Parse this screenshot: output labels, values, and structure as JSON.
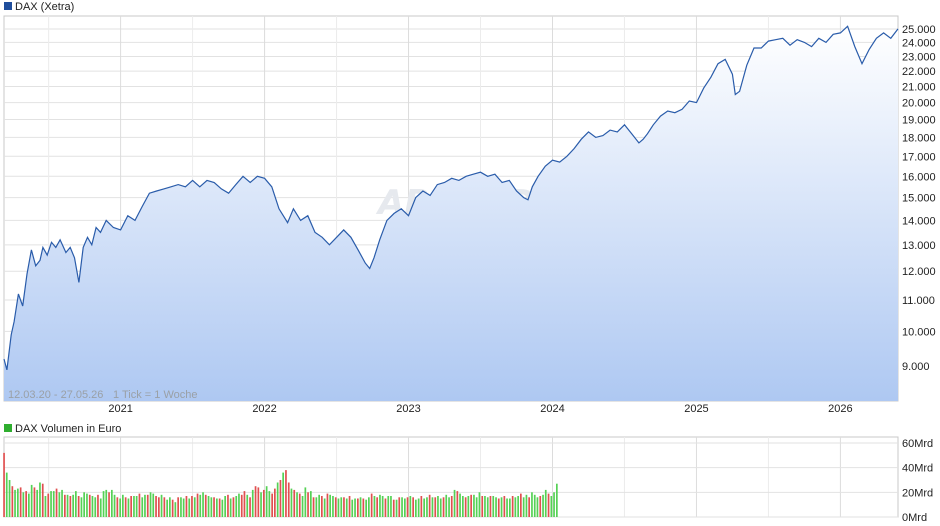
{
  "chart_data": [
    {
      "type": "area",
      "title": "DAX (Xetra)",
      "legend_color": "#1f4e9c",
      "line_color": "#2a5caa",
      "fill_top_color": "#ffffff",
      "fill_bottom_color": "#aec8f2",
      "date_range_note": "12.03.20 - 27.05.26",
      "tick_note": "1 Tick = 1 Woche",
      "watermark": "ARIVA.DE",
      "x_ticks": [
        "2021",
        "2022",
        "2023",
        "2024",
        "2025",
        "2026"
      ],
      "x_tick_values": [
        2021.0,
        2022.0,
        2023.0,
        2024.0,
        2025.0,
        2026.0
      ],
      "xlim": [
        2020.19,
        2026.4
      ],
      "y_ticks": [
        "9.000",
        "10.000",
        "11.000",
        "12.000",
        "13.000",
        "14.000",
        "15.000",
        "16.000",
        "17.000",
        "18.000",
        "19.000",
        "20.000",
        "21.000",
        "22.000",
        "23.000",
        "24.000",
        "25.000"
      ],
      "y_tick_values": [
        9000,
        10000,
        11000,
        12000,
        13000,
        14000,
        15000,
        16000,
        17000,
        18000,
        19000,
        20000,
        21000,
        22000,
        23000,
        24000,
        25000
      ],
      "y_scale": "log",
      "ylim": [
        8100,
        26000
      ],
      "grid": true,
      "x": [
        2020.19,
        2020.21,
        2020.24,
        2020.26,
        2020.29,
        2020.32,
        2020.35,
        2020.38,
        2020.41,
        2020.44,
        2020.46,
        2020.49,
        2020.52,
        2020.55,
        2020.58,
        2020.62,
        2020.65,
        2020.68,
        2020.71,
        2020.74,
        2020.77,
        2020.8,
        2020.83,
        2020.86,
        2020.9,
        2020.95,
        2021.0,
        2021.05,
        2021.1,
        2021.15,
        2021.2,
        2021.25,
        2021.3,
        2021.35,
        2021.4,
        2021.45,
        2021.5,
        2021.55,
        2021.6,
        2021.65,
        2021.7,
        2021.75,
        2021.8,
        2021.85,
        2021.9,
        2021.95,
        2022.0,
        2022.05,
        2022.1,
        2022.13,
        2022.16,
        2022.2,
        2022.25,
        2022.3,
        2022.35,
        2022.4,
        2022.45,
        2022.5,
        2022.55,
        2022.6,
        2022.65,
        2022.7,
        2022.73,
        2022.76,
        2022.8,
        2022.85,
        2022.9,
        2022.95,
        2023.0,
        2023.05,
        2023.1,
        2023.15,
        2023.2,
        2023.25,
        2023.3,
        2023.35,
        2023.4,
        2023.45,
        2023.5,
        2023.55,
        2023.6,
        2023.65,
        2023.7,
        2023.75,
        2023.8,
        2023.83,
        2023.86,
        2023.9,
        2023.95,
        2024.0,
        2024.05,
        2024.1,
        2024.15,
        2024.2,
        2024.25,
        2024.3,
        2024.35,
        2024.4,
        2024.45,
        2024.5,
        2024.55,
        2024.6,
        2024.63,
        2024.66,
        2024.7,
        2024.75,
        2024.8,
        2024.85,
        2024.9,
        2024.95,
        2025.0,
        2025.05,
        2025.1,
        2025.15,
        2025.2,
        2025.25,
        2025.27,
        2025.3,
        2025.35,
        2025.4,
        2025.45,
        2025.5,
        2025.55,
        2025.6,
        2025.65,
        2025.7,
        2025.75,
        2025.8,
        2025.85,
        2025.9,
        2025.95,
        2026.0,
        2026.05,
        2026.1,
        2026.15,
        2026.2,
        2026.25,
        2026.3,
        2026.35,
        2026.4
      ],
      "values": [
        9200,
        8900,
        9900,
        10300,
        11200,
        10800,
        11900,
        12800,
        12200,
        12400,
        12900,
        12600,
        13100,
        12900,
        13200,
        12700,
        12900,
        12500,
        11600,
        12900,
        13300,
        13000,
        13700,
        13500,
        14000,
        13700,
        13600,
        14200,
        14000,
        14600,
        15200,
        15300,
        15400,
        15500,
        15600,
        15500,
        15800,
        15500,
        15800,
        15700,
        15400,
        15200,
        15600,
        16000,
        15700,
        16000,
        15900,
        15500,
        14500,
        14200,
        13900,
        14500,
        14000,
        14200,
        13500,
        13300,
        13000,
        13300,
        13600,
        13300,
        12800,
        12300,
        12100,
        12500,
        13200,
        14000,
        14300,
        14500,
        14200,
        15000,
        15300,
        15100,
        15600,
        15700,
        15900,
        15800,
        16000,
        16100,
        16200,
        16000,
        16100,
        15700,
        15800,
        15300,
        15000,
        14900,
        15500,
        16000,
        16500,
        16800,
        16700,
        17000,
        17400,
        17900,
        18300,
        18000,
        18100,
        18400,
        18300,
        18700,
        18200,
        17700,
        17900,
        18200,
        18700,
        19200,
        19500,
        19400,
        19600,
        20100,
        20000,
        20900,
        21600,
        22500,
        22800,
        21800,
        20500,
        20700,
        22400,
        23600,
        23600,
        24100,
        24200,
        24300,
        23800,
        24200,
        24000,
        23700,
        24300,
        24000,
        24600,
        24700,
        25200,
        23700,
        22500,
        23500,
        24300,
        24700,
        24300,
        25000
      ],
      "annotations": [
        "12.03.20 - 27.05.26",
        "1 Tick = 1 Woche"
      ]
    },
    {
      "type": "bar",
      "title": "DAX Volumen in Euro",
      "legend_color": "#2fae2f",
      "up_color": "#55d155",
      "down_color": "#e05050",
      "x_ticks": [
        "2021",
        "2022",
        "2023",
        "2024",
        "2025",
        "2026"
      ],
      "x_tick_values": [
        2021.0,
        2022.0,
        2023.0,
        2024.0,
        2025.0,
        2026.0
      ],
      "xlim": [
        2020.19,
        2026.4
      ],
      "y_ticks": [
        "60Mrd",
        "40Mrd",
        "20Mrd",
        "0Mrd"
      ],
      "y_tick_values": [
        60,
        40,
        20,
        0
      ],
      "ylabel": "",
      "ylim": [
        0,
        60
      ],
      "grid": true,
      "x_start": 2020.19,
      "x_step": 0.0192,
      "values": [
        52,
        36,
        30,
        25,
        22,
        23,
        24,
        20,
        21,
        19,
        26,
        24,
        22,
        28,
        27,
        17,
        19,
        21,
        21,
        23,
        20,
        22,
        18,
        18,
        17,
        18,
        21,
        17,
        16,
        20,
        19,
        18,
        17,
        16,
        18,
        15,
        21,
        22,
        20,
        22,
        18,
        16,
        15,
        18,
        16,
        15,
        17,
        17,
        17,
        19,
        16,
        18,
        18,
        20,
        19,
        17,
        16,
        18,
        16,
        14,
        16,
        14,
        12,
        16,
        16,
        15,
        17,
        15,
        17,
        16,
        19,
        18,
        20,
        18,
        17,
        16,
        16,
        15,
        15,
        14,
        17,
        18,
        15,
        16,
        17,
        19,
        18,
        21,
        18,
        16,
        22,
        25,
        24,
        20,
        22,
        25,
        21,
        19,
        23,
        28,
        30,
        36,
        38,
        28,
        23,
        22,
        20,
        19,
        17,
        24,
        20,
        21,
        16,
        16,
        18,
        17,
        15,
        19,
        18,
        17,
        16,
        15,
        16,
        16,
        15,
        17,
        14,
        15,
        15,
        16,
        15,
        14,
        16,
        19,
        17,
        16,
        18,
        17,
        15,
        17,
        17,
        14,
        14,
        16,
        16,
        15,
        16,
        17,
        16,
        14,
        15,
        17,
        15,
        16,
        18,
        16,
        16,
        17,
        15,
        16,
        18,
        16,
        17,
        22,
        21,
        19,
        17,
        16,
        17,
        18,
        18,
        16,
        20,
        17,
        17,
        16,
        17,
        17,
        16,
        15,
        16,
        17,
        15,
        15,
        17,
        16,
        17,
        19,
        16,
        18,
        16,
        20,
        18,
        16,
        17,
        18,
        22,
        19,
        17,
        20,
        27
      ],
      "up": [
        0,
        1,
        1,
        0,
        1,
        1,
        0,
        1,
        0,
        1,
        1,
        0,
        1,
        1,
        0,
        1,
        0,
        1,
        1,
        0,
        1,
        1,
        0,
        1,
        0,
        1,
        1,
        0,
        1,
        1,
        1,
        0,
        1,
        1,
        0,
        1,
        1,
        1,
        0,
        1,
        1,
        0,
        1,
        1,
        0,
        1,
        0,
        1,
        1,
        0,
        1,
        1,
        0,
        1,
        1,
        0,
        0,
        1,
        0,
        1,
        1,
        0,
        1,
        0,
        1,
        1,
        0,
        1,
        0,
        1,
        0,
        1,
        1,
        0,
        1,
        1,
        0,
        1,
        0,
        1,
        1,
        0,
        1,
        0,
        1,
        1,
        0,
        0,
        1,
        0,
        1,
        0,
        0,
        1,
        0,
        1,
        1,
        0,
        0,
        1,
        0,
        1,
        0,
        0,
        1,
        0,
        1,
        0,
        1,
        1,
        0,
        1,
        0,
        1,
        1,
        0,
        1,
        0,
        1,
        1,
        0,
        1,
        1,
        0,
        1,
        0,
        1,
        1,
        0,
        1,
        0,
        1,
        1,
        0,
        1,
        0,
        1,
        1,
        0,
        1,
        1,
        0,
        1,
        0,
        1,
        1,
        0,
        1,
        0,
        1,
        1,
        0,
        1,
        1,
        0,
        1,
        0,
        1,
        1,
        0,
        1,
        1,
        0,
        1,
        0,
        1,
        1,
        0,
        1,
        0,
        1,
        1,
        1,
        0,
        1,
        1,
        0,
        1,
        1,
        0,
        1,
        0,
        1,
        1,
        0,
        1,
        1,
        0,
        1,
        1,
        0,
        1,
        1,
        1,
        0,
        1,
        1,
        0,
        1,
        1,
        1
      ]
    }
  ]
}
